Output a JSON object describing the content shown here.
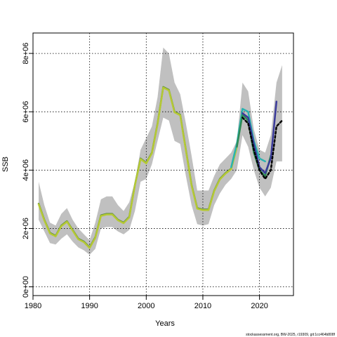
{
  "chart_data": {
    "type": "line",
    "xlabel": "Years",
    "ylabel": "SSB",
    "xlim": [
      1980,
      2026
    ],
    "ylim": [
      -300000,
      8700000
    ],
    "x_ticks": [
      1980,
      1990,
      2000,
      2010,
      2020
    ],
    "x_tick_labels": [
      "1980",
      "1990",
      "2000",
      "2010",
      "2020"
    ],
    "y_ticks": [
      0,
      2000000,
      4000000,
      6000000,
      8000000
    ],
    "y_tick_labels": [
      "0e+00",
      "2e+06",
      "4e+06",
      "6e+06",
      "8e+06"
    ],
    "grid": true,
    "band": {
      "color": "#c0c0c0",
      "x": [
        1981,
        1982,
        1983,
        1984,
        1985,
        1986,
        1987,
        1988,
        1989,
        1990,
        1991,
        1992,
        1993,
        1994,
        1995,
        1996,
        1997,
        1998,
        1999,
        2000,
        2001,
        2002,
        2003,
        2004,
        2005,
        2006,
        2007,
        2008,
        2009,
        2010,
        2011,
        2012,
        2013,
        2014,
        2015,
        2016,
        2017,
        2018,
        2019,
        2020,
        2021,
        2022,
        2023,
        2024
      ],
      "upper": [
        3600000,
        2800000,
        2200000,
        2100000,
        2500000,
        2700000,
        2300000,
        2000000,
        1800000,
        1600000,
        2200000,
        3000000,
        3100000,
        3100000,
        2800000,
        2600000,
        2900000,
        3600000,
        4700000,
        5100000,
        5500000,
        6500000,
        8200000,
        8000000,
        7000000,
        6600000,
        5600000,
        4500000,
        3300000,
        3300000,
        3300000,
        3800000,
        4200000,
        4400000,
        4600000,
        5000000,
        7000000,
        6700000,
        5400000,
        4700000,
        4600000,
        5200000,
        7000000,
        7600000
      ],
      "lower": [
        2300000,
        1900000,
        1500000,
        1450000,
        1650000,
        1800000,
        1550000,
        1350000,
        1250000,
        1100000,
        1300000,
        2000000,
        2050000,
        2050000,
        1900000,
        1800000,
        1950000,
        2600000,
        3600000,
        3700000,
        4200000,
        5000000,
        5800000,
        5700000,
        5000000,
        4900000,
        3800000,
        2800000,
        2150000,
        2100000,
        2150000,
        2800000,
        3200000,
        3500000,
        3700000,
        4000000,
        5200000,
        4800000,
        4000000,
        3400000,
        3100000,
        3400000,
        4300000,
        4300000
      ]
    },
    "series": [
      {
        "color": "#5a8a3c",
        "x": [
          1981,
          1982,
          1983,
          1984,
          1985,
          1986,
          1987,
          1988,
          1989,
          1990,
          1991,
          1992,
          1993,
          1994,
          1995,
          1996,
          1997,
          1998,
          1999,
          2000,
          2001,
          2002,
          2003,
          2004,
          2005,
          2006,
          2007,
          2008,
          2009,
          2010,
          2011,
          2012,
          2013,
          2014,
          2015,
          2016,
          2017
        ],
        "values": [
          2850000,
          2300000,
          1850000,
          1750000,
          2100000,
          2250000,
          1950000,
          1650000,
          1550000,
          1350000,
          1700000,
          2450000,
          2500000,
          2500000,
          2300000,
          2200000,
          2400000,
          3500000,
          4400000,
          4250000,
          4600000,
          5600000,
          6850000,
          6750000,
          6000000,
          5900000,
          4700000,
          3500000,
          2700000,
          2650000,
          2650000,
          3300000,
          3700000,
          3900000,
          4050000,
          4800000,
          5950000
        ]
      },
      {
        "color": "#b5c934",
        "x": [
          1981,
          1982,
          1983,
          1984,
          1985,
          1986,
          1987,
          1988,
          1989,
          1990,
          1991,
          1992,
          1993,
          1994,
          1995,
          1996,
          1997,
          1998,
          1999,
          2000,
          2001,
          2002,
          2003,
          2004,
          2005,
          2006,
          2007,
          2008,
          2009,
          2010,
          2011,
          2012,
          2013,
          2014,
          2015,
          2016
        ],
        "values": [
          2830000,
          2280000,
          1830000,
          1730000,
          2080000,
          2230000,
          1930000,
          1630000,
          1530000,
          1330000,
          1680000,
          2430000,
          2480000,
          2480000,
          2280000,
          2180000,
          2380000,
          3480000,
          4380000,
          4230000,
          4580000,
          5580000,
          6830000,
          6730000,
          5980000,
          5880000,
          4680000,
          3480000,
          2680000,
          2630000,
          2630000,
          3280000,
          3680000,
          3880000,
          4030000,
          4780000
        ]
      },
      {
        "color": "#2ab3b0",
        "x": [
          2015,
          2016,
          2017,
          2018,
          2019,
          2020,
          2021
        ],
        "values": [
          4100000,
          4900000,
          6100000,
          6000000,
          5000000,
          4400000,
          4300000
        ]
      },
      {
        "color": "#2e8b57",
        "x": [
          2016,
          2017,
          2018,
          2019,
          2020,
          2021,
          2022
        ],
        "values": [
          4800000,
          5900000,
          5700000,
          4600000,
          4000000,
          3800000,
          4500000
        ]
      },
      {
        "color": "#3a3a9a",
        "x": [
          2017,
          2018,
          2019,
          2020,
          2021,
          2022,
          2023
        ],
        "values": [
          5950000,
          5800000,
          4900000,
          4100000,
          3900000,
          4400000,
          6350000
        ]
      },
      {
        "color": "#000000",
        "dashed": true,
        "x": [
          2017,
          2018,
          2019,
          2020,
          2021,
          2022,
          2023,
          2024
        ],
        "values": [
          5800000,
          5600000,
          4700000,
          4000000,
          3700000,
          4000000,
          5500000,
          5700000
        ]
      }
    ]
  },
  "footer": {
    "note": "stockassessment.org, BW-2025, r19309, git:1cc464b808f"
  }
}
